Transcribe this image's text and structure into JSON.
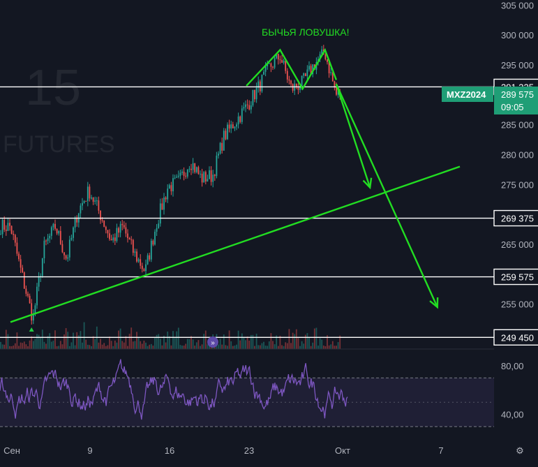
{
  "watermark": {
    "interval": "15",
    "market": "FUTURES"
  },
  "annotation": {
    "text": "БЫЧЬЯ ЛОВУШКА!",
    "color": "#22dd22"
  },
  "colors": {
    "background": "#131722",
    "up_candle": "#26a69a",
    "down_candle": "#ef5350",
    "rsi_line": "#7e57c2",
    "rsi_band": "#7e57c2",
    "drawing": "#22dd22",
    "hline": "#ffffff",
    "ticker_badge": "#1f9e76"
  },
  "ticker": {
    "symbol": "MXZ2024",
    "price": "289 575",
    "countdown": "09:05"
  },
  "chart_data": {
    "type": "candlestick",
    "price_axis": {
      "ticks": [
        "305 000",
        "300 000",
        "295 000",
        "285 000",
        "280 000",
        "275 000",
        "265 000",
        "255 000"
      ],
      "range": [
        247500,
        305500
      ]
    },
    "horizontal_levels": [
      {
        "value": 291325,
        "label": "291 325"
      },
      {
        "value": 269375,
        "label": "269 375"
      },
      {
        "value": 259575,
        "label": "259 575"
      },
      {
        "value": 249450,
        "label": "249 450"
      }
    ],
    "x_axis": {
      "ticks": [
        "Сен",
        "9",
        "16",
        "23",
        "Окт",
        "7"
      ]
    },
    "close_path": [
      [
        "2024-09-02",
        268000
      ],
      [
        "2024-09-03",
        260000
      ],
      [
        "2024-09-04",
        252500
      ],
      [
        "2024-09-05",
        264500
      ],
      [
        "2024-09-06",
        268000
      ],
      [
        "2024-09-07",
        262500
      ],
      [
        "2024-09-08",
        270500
      ],
      [
        "2024-09-09",
        274000
      ],
      [
        "2024-09-10",
        270000
      ],
      [
        "2024-09-11",
        265500
      ],
      [
        "2024-09-12",
        268000
      ],
      [
        "2024-09-13",
        263500
      ],
      [
        "2024-09-14",
        260500
      ],
      [
        "2024-09-15",
        268500
      ],
      [
        "2024-09-16",
        274500
      ],
      [
        "2024-09-17",
        275500
      ],
      [
        "2024-09-18",
        279000
      ],
      [
        "2024-09-19",
        276000
      ],
      [
        "2024-09-20",
        276500
      ],
      [
        "2024-09-21",
        283000
      ],
      [
        "2024-09-22",
        285500
      ],
      [
        "2024-09-23",
        288000
      ],
      [
        "2024-09-24",
        291000
      ],
      [
        "2024-09-25",
        294500
      ],
      [
        "2024-09-26",
        296500
      ],
      [
        "2024-09-27",
        291000
      ],
      [
        "2024-09-28",
        292000
      ],
      [
        "2024-09-29",
        295000
      ],
      [
        "2024-09-30",
        297000
      ],
      [
        "2024-10-01",
        290000
      ]
    ],
    "drawings": {
      "double_top": [
        [
          "2024-09-23",
          291500
        ],
        [
          "2024-09-26",
          297500
        ],
        [
          "2024-09-28",
          291000
        ],
        [
          "2024-09-30",
          297500
        ],
        [
          "2024-10-01",
          292500
        ]
      ],
      "trend_line": [
        [
          "2024-09-02",
          252000
        ],
        [
          "2024-10-12",
          278000
        ]
      ],
      "forecast_arrows": [
        [
          [
            "2024-10-01",
            291800
          ],
          [
            "2024-10-04",
            274500
          ]
        ],
        [
          [
            "2024-10-01",
            291800
          ],
          [
            "2024-10-10",
            254500
          ]
        ]
      ]
    },
    "rsi": {
      "ticks": [
        "80,00",
        "40,00"
      ],
      "range": [
        18,
        92
      ],
      "band": [
        30,
        70
      ],
      "midline": 50
    }
  }
}
